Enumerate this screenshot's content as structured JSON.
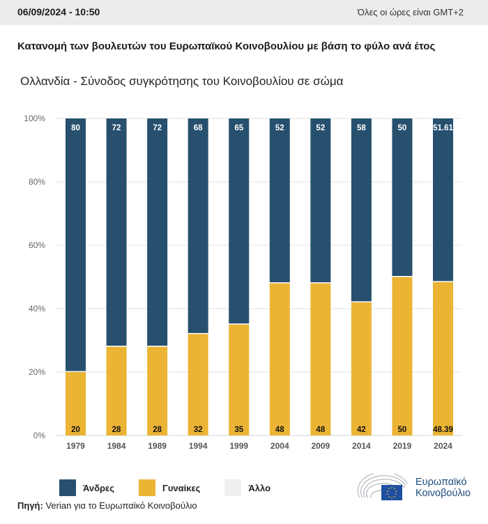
{
  "header": {
    "datetime": "06/09/2024 - 10:50",
    "timezone_note": "Όλες οι ώρες είναι GMT+2"
  },
  "title": "Κατανομή των βουλευτών του Ευρωπαϊκού Κοινοβουλίου με βάση το φύλο ανά έτος",
  "subtitle": "Ολλανδία - Σύνοδος συγκρότησης του Κοινοβουλίου σε σώμα",
  "colors": {
    "men": "#26506e",
    "women": "#ebb434",
    "other": "#eeeff1",
    "grid": "#e2e2e2"
  },
  "chart_data": {
    "type": "bar",
    "stacked": true,
    "percent": true,
    "title": "Κατανομή των βουλευτών του Ευρωπαϊκού Κοινοβουλίου με βάση το φύλο ανά έτος",
    "subtitle": "Ολλανδία - Σύνοδος συγκρότησης του Κοινοβουλίου σε σώμα",
    "categories": [
      "1979",
      "1984",
      "1989",
      "1994",
      "1999",
      "2004",
      "2009",
      "2014",
      "2019",
      "2024"
    ],
    "series": [
      {
        "name": "Γυναίκες",
        "values": [
          20,
          28,
          28,
          32,
          35,
          48,
          48,
          42,
          50,
          48.39
        ]
      },
      {
        "name": "Άνδρες",
        "values": [
          80,
          72,
          72,
          68,
          65,
          52,
          52,
          58,
          50,
          51.61
        ]
      },
      {
        "name": "Άλλο",
        "values": [
          0,
          0,
          0,
          0,
          0,
          0,
          0,
          0,
          0,
          0
        ]
      }
    ],
    "xlabel": "",
    "ylabel": "",
    "ylim": [
      0,
      100
    ],
    "yticks": [
      "0%",
      "20%",
      "40%",
      "60%",
      "80%",
      "100%"
    ],
    "grid": true,
    "legend_position": "bottom-left"
  },
  "legend": [
    {
      "label": "Άνδρες",
      "color_key": "men"
    },
    {
      "label": "Γυναίκες",
      "color_key": "women"
    },
    {
      "label": "Άλλο",
      "color_key": "other"
    }
  ],
  "source": {
    "label": "Πηγή:",
    "text": "Verian για το Ευρωπαϊκό Κοινοβούλιο"
  },
  "logo": {
    "line1": "Ευρωπαϊκό",
    "line2": "Κοινοβούλιο"
  }
}
